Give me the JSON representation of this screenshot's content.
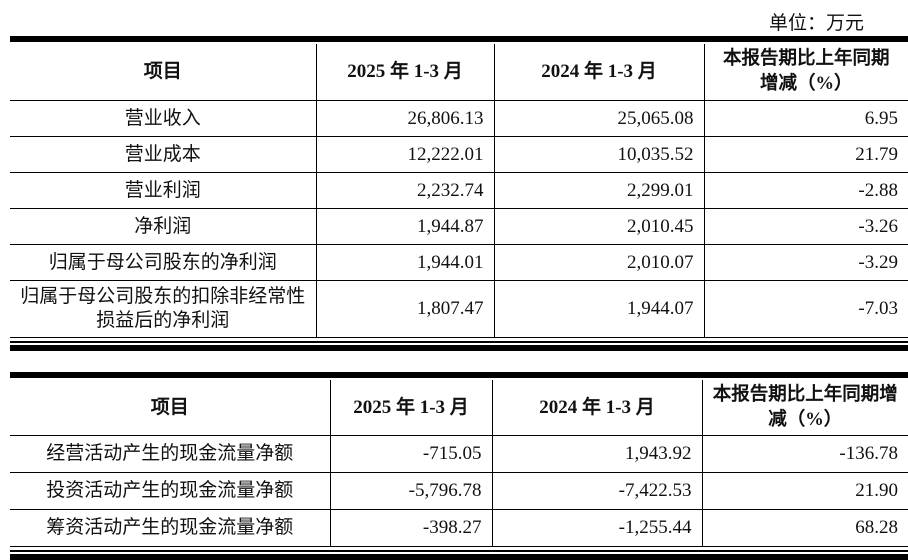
{
  "unit_label": "单位：万元",
  "table1": {
    "headers": [
      "项目",
      "2025 年 1-3 月",
      "2024 年 1-3 月",
      "本报告期比上年同期增减（%）"
    ],
    "rows": [
      [
        "营业收入",
        "26,806.13",
        "25,065.08",
        "6.95"
      ],
      [
        "营业成本",
        "12,222.01",
        "10,035.52",
        "21.79"
      ],
      [
        "营业利润",
        "2,232.74",
        "2,299.01",
        "-2.88"
      ],
      [
        "净利润",
        "1,944.87",
        "2,010.45",
        "-3.26"
      ],
      [
        "归属于母公司股东的净利润",
        "1,944.01",
        "2,010.07",
        "-3.29"
      ],
      [
        "归属于母公司股东的扣除非经常性损益后的净利润",
        "1,807.47",
        "1,944.07",
        "-7.03"
      ]
    ]
  },
  "table2": {
    "headers": [
      "项目",
      "2025 年 1-3 月",
      "2024 年 1-3 月",
      "本报告期比上年同期增减（%）"
    ],
    "rows": [
      [
        "经营活动产生的现金流量净额",
        "-715.05",
        "1,943.92",
        "-136.78"
      ],
      [
        "投资活动产生的现金流量净额",
        "-5,796.78",
        "-7,422.53",
        "21.90"
      ],
      [
        "筹资活动产生的现金流量净额",
        "-398.27",
        "-1,255.44",
        "68.28"
      ]
    ]
  }
}
